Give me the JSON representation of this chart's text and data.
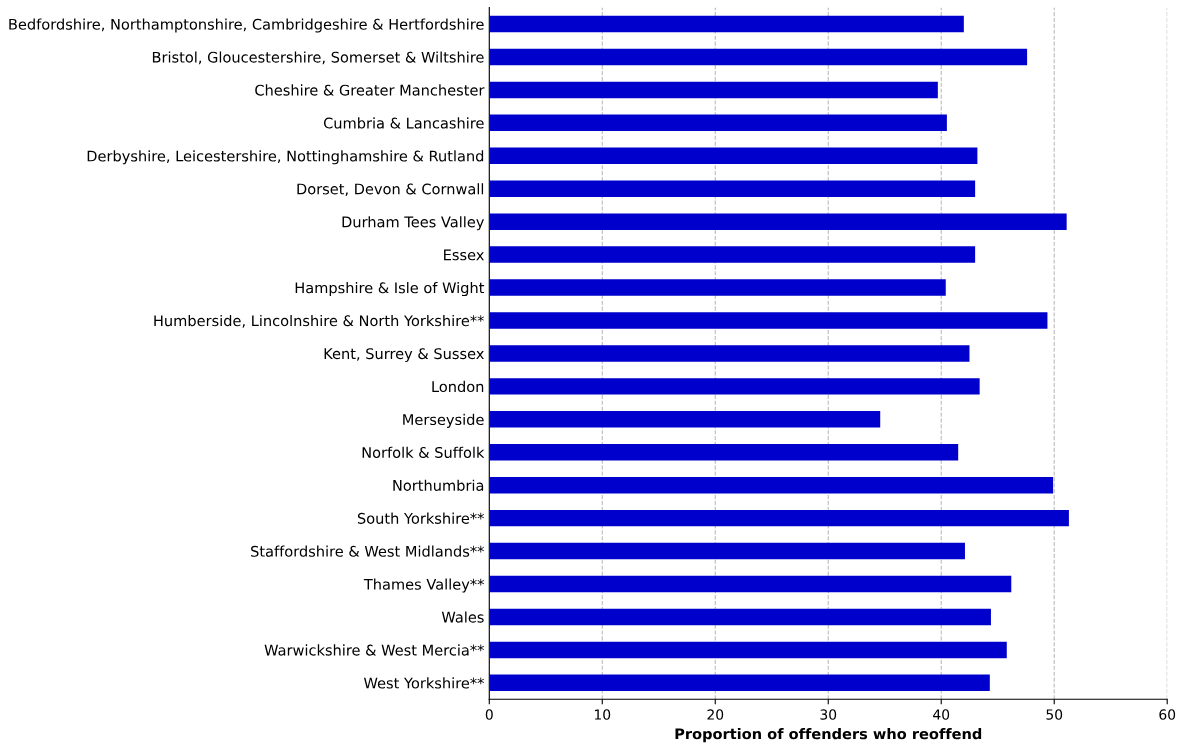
{
  "chart_data": {
    "type": "bar",
    "orientation": "horizontal",
    "xlabel": "Proportion of offenders who reoffend",
    "categories": [
      "Bedfordshire, Northamptonshire, Cambridgeshire & Hertfordshire",
      "Bristol, Gloucestershire, Somerset & Wiltshire",
      "Cheshire & Greater Manchester",
      "Cumbria & Lancashire",
      "Derbyshire, Leicestershire, Nottinghamshire & Rutland",
      "Dorset, Devon & Cornwall",
      "Durham Tees Valley",
      "Essex",
      "Hampshire & Isle of Wight",
      "Humberside, Lincolnshire & North Yorkshire**",
      "Kent, Surrey & Sussex",
      "London",
      "Merseyside",
      "Norfolk & Suffolk",
      "Northumbria",
      "South Yorkshire**",
      "Staffordshire & West Midlands**",
      "Thames Valley**",
      "Wales",
      "Warwickshire & West Mercia**",
      "West Yorkshire**"
    ],
    "values": [
      42.0,
      47.6,
      39.7,
      40.5,
      43.2,
      43.0,
      51.1,
      43.0,
      40.4,
      49.4,
      42.5,
      43.4,
      34.6,
      41.5,
      49.9,
      51.3,
      42.1,
      46.2,
      44.4,
      45.8,
      44.3
    ],
    "color": "#0000cc",
    "xlim": [
      0,
      60
    ],
    "xticks": [
      0,
      10,
      20,
      30,
      40,
      50,
      60
    ],
    "grid": "x"
  }
}
